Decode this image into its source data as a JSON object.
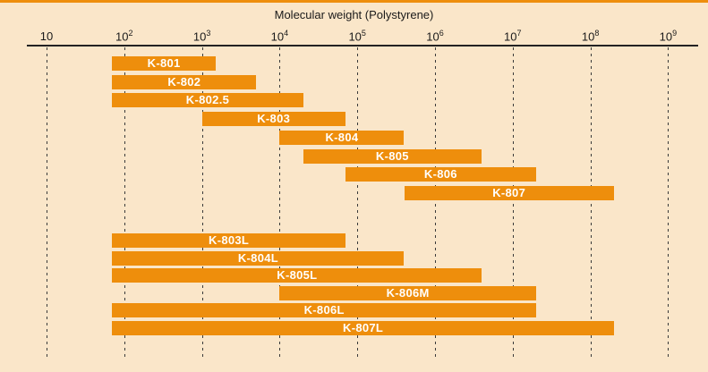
{
  "colors": {
    "bar": "#EE8E0C",
    "background": "#FAE6C9",
    "bar_label": "#FFFFFF",
    "axis": "#222222",
    "top_rule": "#EE8E0C"
  },
  "chart_data": {
    "type": "bar",
    "orientation": "horizontal-range",
    "title": "Molecular weight (Polystyrene)",
    "legend": "none",
    "grid": "vertical-dashed",
    "x_axis": {
      "scale": "log10",
      "min": 10,
      "max": 1000000000,
      "ticks": [
        {
          "text": "10",
          "sup": "",
          "value": 10
        },
        {
          "text": "10",
          "sup": "2",
          "value": 100
        },
        {
          "text": "10",
          "sup": "3",
          "value": 1000
        },
        {
          "text": "10",
          "sup": "4",
          "value": 10000
        },
        {
          "text": "10",
          "sup": "5",
          "value": 100000
        },
        {
          "text": "10",
          "sup": "6",
          "value": 1000000
        },
        {
          "text": "10",
          "sup": "7",
          "value": 10000000
        },
        {
          "text": "10",
          "sup": "8",
          "value": 100000000
        },
        {
          "text": "10",
          "sup": "9",
          "value": 1000000000
        }
      ]
    },
    "groups": [
      {
        "name": "upper-group",
        "bars": [
          {
            "label": "K-801",
            "range_min": 70,
            "range_max": 1500
          },
          {
            "label": "K-802",
            "range_min": 70,
            "range_max": 5000
          },
          {
            "label": "K-802.5",
            "range_min": 70,
            "range_max": 20000
          },
          {
            "label": "K-803",
            "range_min": 1000,
            "range_max": 70000
          },
          {
            "label": "K-804",
            "range_min": 10000,
            "range_max": 400000
          },
          {
            "label": "K-805",
            "range_min": 20000,
            "range_max": 4000000
          },
          {
            "label": "K-806",
            "range_min": 70000,
            "range_max": 20000000
          },
          {
            "label": "K-807",
            "range_min": 400000,
            "range_max": 200000000
          }
        ]
      },
      {
        "name": "lower-group",
        "bars": [
          {
            "label": "K-803L",
            "range_min": 70,
            "range_max": 70000
          },
          {
            "label": "K-804L",
            "range_min": 70,
            "range_max": 400000
          },
          {
            "label": "K-805L",
            "range_min": 70,
            "range_max": 4000000
          },
          {
            "label": "K-806M",
            "range_min": 10000,
            "range_max": 20000000
          },
          {
            "label": "K-806L",
            "range_min": 70,
            "range_max": 20000000
          },
          {
            "label": "K-807L",
            "range_min": 70,
            "range_max": 200000000
          }
        ]
      }
    ]
  }
}
